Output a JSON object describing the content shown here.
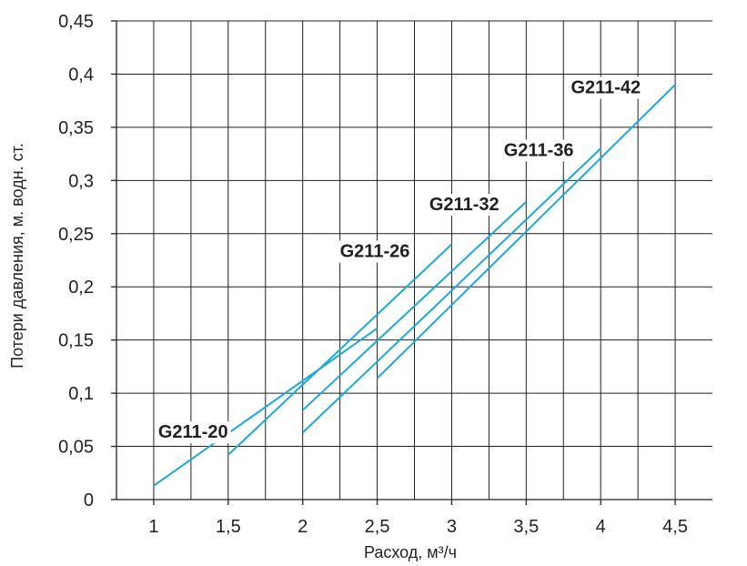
{
  "chart_data": {
    "type": "line",
    "xlabel": "Расход, м³/ч",
    "ylabel": "Потери давления, м. водн. ст.",
    "xlim": [
      0.75,
      4.75
    ],
    "ylim": [
      0,
      0.45
    ],
    "x_ticks": [
      "1",
      "1,5",
      "2",
      "2,5",
      "3",
      "3,5",
      "4",
      "4,5"
    ],
    "x_tick_values": [
      1,
      1.5,
      2,
      2.5,
      3,
      3.5,
      4,
      4.5
    ],
    "y_ticks": [
      "0",
      "0,05",
      "0,1",
      "0,15",
      "0,2",
      "0,25",
      "0,3",
      "0,35",
      "0,4",
      "0,45"
    ],
    "y_tick_values": [
      0,
      0.05,
      0.1,
      0.15,
      0.2,
      0.25,
      0.3,
      0.35,
      0.4,
      0.45
    ],
    "grid": true,
    "line_color": "#1ba8dc",
    "series": [
      {
        "name": "G211-20",
        "x": [
          1,
          2.5
        ],
        "y": [
          0.013,
          0.161
        ]
      },
      {
        "name": "G211-26",
        "x": [
          1.5,
          3
        ],
        "y": [
          0.042,
          0.24
        ]
      },
      {
        "name": "G211-32",
        "x": [
          2,
          3.5
        ],
        "y": [
          0.084,
          0.28
        ]
      },
      {
        "name": "G211-36",
        "x": [
          2,
          4
        ],
        "y": [
          0.063,
          0.33
        ]
      },
      {
        "name": "G211-42",
        "x": [
          2.5,
          4.5
        ],
        "y": [
          0.114,
          0.39
        ]
      }
    ]
  }
}
